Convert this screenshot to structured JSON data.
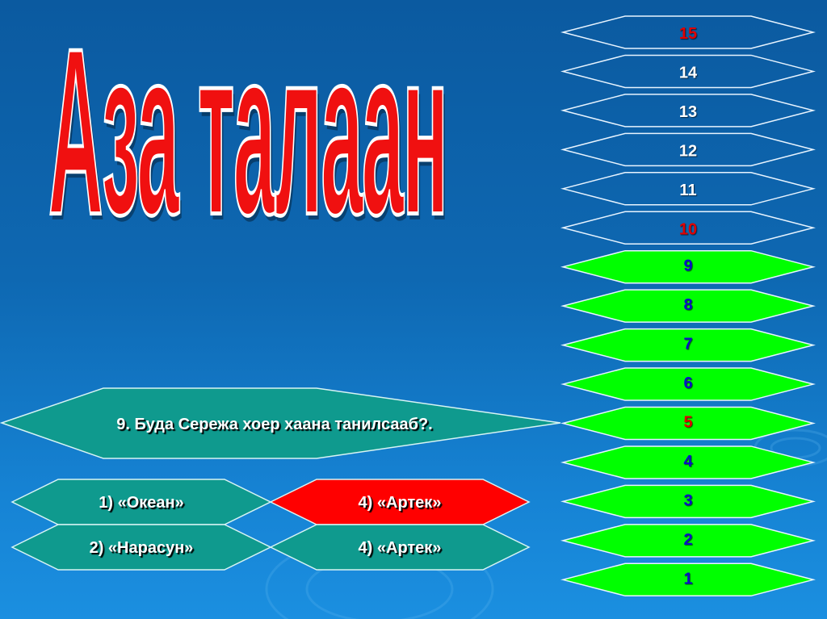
{
  "title": "Аза талаан",
  "question": {
    "text": "9. Буда Сережа хоер хаана танилсааб?."
  },
  "answers": [
    {
      "text": "1) «Океан»",
      "state": "normal"
    },
    {
      "text": "4) «Артек»",
      "state": "selected"
    },
    {
      "text": "2) «Нарасун»",
      "state": "normal"
    },
    {
      "text": "4) «Артек»",
      "state": "normal"
    }
  ],
  "ladder": [
    {
      "label": "15",
      "state": "pending",
      "milestone": true
    },
    {
      "label": "14",
      "state": "pending",
      "milestone": false
    },
    {
      "label": "13",
      "state": "pending",
      "milestone": false
    },
    {
      "label": "12",
      "state": "pending",
      "milestone": false
    },
    {
      "label": "11",
      "state": "pending",
      "milestone": false
    },
    {
      "label": "10",
      "state": "pending",
      "milestone": true
    },
    {
      "label": "9",
      "state": "passed",
      "milestone": false
    },
    {
      "label": "8",
      "state": "passed",
      "milestone": false
    },
    {
      "label": "7",
      "state": "passed",
      "milestone": false
    },
    {
      "label": "6",
      "state": "passed",
      "milestone": false
    },
    {
      "label": "5",
      "state": "passed",
      "milestone": true
    },
    {
      "label": "4",
      "state": "passed",
      "milestone": false
    },
    {
      "label": "3",
      "state": "passed",
      "milestone": false
    },
    {
      "label": "2",
      "state": "passed",
      "milestone": false
    },
    {
      "label": "1",
      "state": "passed",
      "milestone": false
    }
  ],
  "colors": {
    "teal": "#0f9a8e",
    "selected": "#ff0000",
    "passed": "#00ff00",
    "milestone_text": "#e00000",
    "passed_text": "#0a10c8",
    "pending_text": "#ffffff"
  }
}
